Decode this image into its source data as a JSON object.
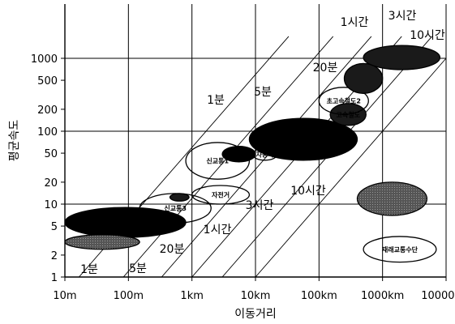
{
  "chart_data": {
    "type": "scatter",
    "title": "",
    "xlabel": "이동거리",
    "ylabel": "평균속도",
    "x_scale": "log",
    "y_scale": "log",
    "xlim": [
      "10m",
      "10000km"
    ],
    "ylim": [
      1,
      1500
    ],
    "grid": true,
    "x_ticks": [
      "10m",
      "100m",
      "1km",
      "10km",
      "100km",
      "1000km",
      "10000km"
    ],
    "y_ticks": [
      "1",
      "2",
      "5",
      "10",
      "20",
      "50",
      "100",
      "200",
      "500",
      "1000"
    ],
    "isochrones": [
      {
        "label": "1분",
        "label_pos": "bottom",
        "minutes": 1
      },
      {
        "label": "5분",
        "label_pos": "bottom",
        "minutes": 5
      },
      {
        "label": "20분",
        "label_pos": "bottom",
        "minutes": 20
      },
      {
        "label": "1시간",
        "label_pos": "bottom",
        "minutes": 60
      },
      {
        "label": "3시간",
        "label_pos": "bottom",
        "minutes": 180
      },
      {
        "label": "10시간",
        "label_pos": "bottom",
        "minutes": 600
      },
      {
        "label": "1분",
        "label_pos": "top",
        "minutes": 1
      },
      {
        "label": "5분",
        "label_pos": "top",
        "minutes": 5
      },
      {
        "label": "20분",
        "label_pos": "top",
        "minutes": 20
      },
      {
        "label": "1시간",
        "label_pos": "top",
        "minutes": 60
      },
      {
        "label": "3시간",
        "label_pos": "top",
        "minutes": 180
      },
      {
        "label": "10시간",
        "label_pos": "top",
        "minutes": 600
      }
    ],
    "regions": [
      {
        "label": "",
        "fill": "black",
        "x_range": [
          "10m",
          "800m"
        ],
        "y_range": [
          3.5,
          9
        ]
      },
      {
        "label": "",
        "fill": "gray",
        "x_range": [
          "10m",
          "150m"
        ],
        "y_range": [
          2.4,
          3.8
        ]
      },
      {
        "label": "신교통3",
        "fill": "white",
        "x_range": [
          "150m",
          "2km"
        ],
        "y_range": [
          5.5,
          14
        ]
      },
      {
        "label": "",
        "fill": "dark",
        "x_range": [
          "450m",
          "900m"
        ],
        "y_range": [
          11,
          14
        ]
      },
      {
        "label": "자전거",
        "fill": "white",
        "x_range": [
          "1km",
          "8km"
        ],
        "y_range": [
          10,
          18
        ]
      },
      {
        "label": "신교통1",
        "fill": "white",
        "x_range": [
          "800m",
          "8km"
        ],
        "y_range": [
          22,
          70
        ]
      },
      {
        "label": "",
        "fill": "black",
        "x_range": [
          "3km",
          "10km"
        ],
        "y_range": [
          38,
          62
        ]
      },
      {
        "label": "자동차",
        "fill": "white",
        "x_range": [
          "9km",
          "22km"
        ],
        "y_range": [
          40,
          58
        ]
      },
      {
        "label": "",
        "fill": "black",
        "x_range": [
          "8km",
          "400km"
        ],
        "y_range": [
          40,
          150
        ]
      },
      {
        "label": "고속철도",
        "fill": "dark",
        "x_range": [
          "150km",
          "550km"
        ],
        "y_range": [
          120,
          240
        ]
      },
      {
        "label": "초고속철도2",
        "fill": "white",
        "x_range": [
          "100km",
          "600km"
        ],
        "y_range": [
          170,
          400
        ]
      },
      {
        "label": "",
        "fill": "dark",
        "x_range": [
          "250km",
          "1000km"
        ],
        "y_range": [
          330,
          850
        ]
      },
      {
        "label": "",
        "fill": "dark",
        "x_range": [
          "500km",
          "8000km"
        ],
        "y_range": [
          700,
          1500
        ]
      },
      {
        "label": "",
        "fill": "gray",
        "x_range": [
          "400km",
          "5000km"
        ],
        "y_range": [
          7,
          20
        ]
      },
      {
        "label": "재래교통수단",
        "fill": "white",
        "x_range": [
          "500km",
          "7000km"
        ],
        "y_range": [
          1.6,
          3.6
        ]
      }
    ]
  }
}
